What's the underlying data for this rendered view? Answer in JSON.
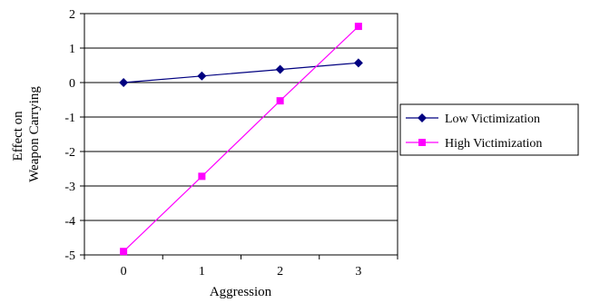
{
  "chart_data": {
    "type": "line",
    "title": "",
    "xlabel": "Aggression",
    "ylabel": [
      "Effect on",
      "Weapon Carrying"
    ],
    "x": [
      0,
      1,
      2,
      3
    ],
    "x_tick_labels": [
      "0",
      "1",
      "2",
      "3"
    ],
    "ylim": [
      -5,
      2
    ],
    "y_ticks": [
      2,
      1,
      0,
      -1,
      -2,
      -3,
      -4,
      -5
    ],
    "y_tick_labels": [
      "2",
      "1",
      "0",
      "-1",
      "-2",
      "-3",
      "-4",
      "-5"
    ],
    "grid": "horizontal",
    "legend_position": "right",
    "series": [
      {
        "name": "Low Victimization",
        "values": [
          0.0,
          0.19,
          0.38,
          0.57
        ],
        "color": "#000080",
        "marker": "diamond"
      },
      {
        "name": "High Victimization",
        "values": [
          -4.9,
          -2.72,
          -0.53,
          1.63
        ],
        "color": "#FF00FF",
        "marker": "square"
      }
    ]
  }
}
